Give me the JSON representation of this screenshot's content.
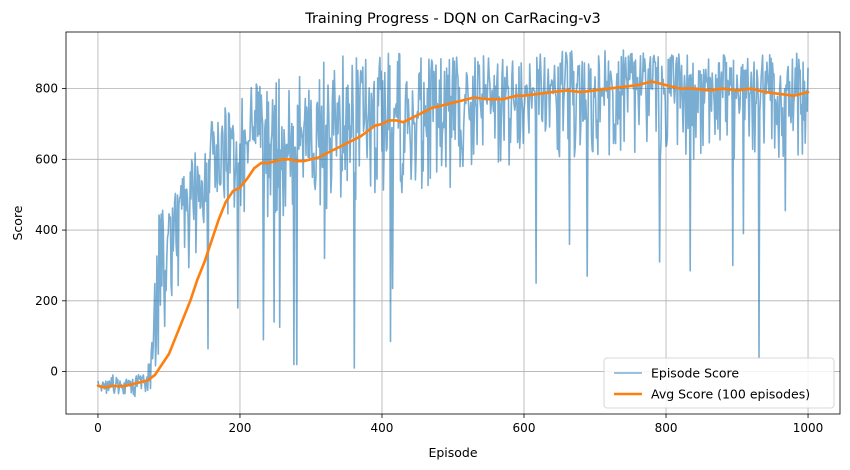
{
  "chart_data": {
    "type": "line",
    "title": "Training Progress - DQN on CarRacing-v3",
    "xlabel": "Episode",
    "ylabel": "Score",
    "xlim": [
      -45,
      1045
    ],
    "ylim": [
      -120,
      960
    ],
    "xticks": [
      0,
      200,
      400,
      600,
      800,
      1000
    ],
    "yticks": [
      0,
      200,
      400,
      600,
      800
    ],
    "grid": true,
    "legend_position": "lower-right",
    "series": [
      {
        "name": "Episode Score",
        "color": "#1f77b4",
        "opacity": 0.6,
        "line_width": 1.6,
        "style": "noisy",
        "x": [
          0,
          10,
          20,
          30,
          40,
          50,
          60,
          70,
          80,
          90,
          100,
          110,
          120,
          130,
          140,
          150,
          160,
          170,
          180,
          190,
          200,
          210,
          220,
          230,
          240,
          250,
          260,
          270,
          280,
          290,
          300,
          320,
          340,
          360,
          380,
          400,
          420,
          440,
          460,
          480,
          500,
          520,
          540,
          560,
          580,
          600,
          620,
          640,
          660,
          680,
          700,
          720,
          740,
          760,
          780,
          800,
          820,
          840,
          860,
          880,
          900,
          920,
          940,
          960,
          980,
          1000
        ],
        "y": [
          -40,
          -45,
          -40,
          -45,
          -40,
          -45,
          -40,
          -40,
          150,
          280,
          340,
          390,
          430,
          480,
          520,
          560,
          590,
          600,
          620,
          630,
          640,
          650,
          660,
          650,
          660,
          650,
          660,
          650,
          640,
          650,
          660,
          680,
          690,
          700,
          710,
          720,
          720,
          720,
          730,
          740,
          740,
          760,
          770,
          770,
          760,
          780,
          790,
          790,
          800,
          800,
          800,
          800,
          800,
          800,
          800,
          800,
          800,
          800,
          800,
          800,
          790,
          790,
          790,
          800,
          790,
          800
        ],
        "amplitude_down": [
          15,
          20,
          20,
          25,
          25,
          30,
          35,
          40,
          150,
          250,
          220,
          200,
          180,
          220,
          220,
          200,
          220,
          200,
          200,
          180,
          220,
          220,
          220,
          220,
          230,
          230,
          230,
          220,
          230,
          220,
          220,
          220,
          230,
          230,
          220,
          230,
          230,
          220,
          220,
          220,
          220,
          200,
          200,
          200,
          200,
          200,
          190,
          190,
          190,
          200,
          200,
          200,
          200,
          190,
          200,
          200,
          200,
          200,
          200,
          200,
          200,
          200,
          200,
          200,
          200,
          190
        ],
        "amplitude_up": [
          15,
          20,
          50,
          25,
          20,
          30,
          35,
          30,
          200,
          230,
          150,
          120,
          120,
          110,
          120,
          130,
          120,
          130,
          130,
          140,
          130,
          150,
          170,
          180,
          200,
          200,
          200,
          200,
          200,
          200,
          200,
          210,
          210,
          200,
          190,
          180,
          180,
          180,
          170,
          160,
          150,
          140,
          130,
          120,
          120,
          120,
          110,
          110,
          110,
          110,
          110,
          110,
          110,
          110,
          100,
          100,
          100,
          100,
          100,
          100,
          110,
          115,
          110,
          100,
          110,
          100
        ],
        "spikes": [
          {
            "x": 155,
            "y": 65
          },
          {
            "x": 197,
            "y": 180
          },
          {
            "x": 233,
            "y": 90
          },
          {
            "x": 248,
            "y": 140
          },
          {
            "x": 256,
            "y": 125
          },
          {
            "x": 276,
            "y": 20
          },
          {
            "x": 280,
            "y": 20
          },
          {
            "x": 319,
            "y": 320
          },
          {
            "x": 361,
            "y": 10
          },
          {
            "x": 412,
            "y": 85
          },
          {
            "x": 415,
            "y": 235
          },
          {
            "x": 617,
            "y": 250
          },
          {
            "x": 664,
            "y": 360
          },
          {
            "x": 689,
            "y": 270
          },
          {
            "x": 791,
            "y": 310
          },
          {
            "x": 834,
            "y": 285
          },
          {
            "x": 894,
            "y": 300
          },
          {
            "x": 909,
            "y": 390
          },
          {
            "x": 931,
            "y": 40
          },
          {
            "x": 968,
            "y": 455
          }
        ]
      },
      {
        "name": "Avg Score (100 episodes)",
        "color": "#ff7f0e",
        "opacity": 1,
        "line_width": 2.6,
        "x": [
          0,
          10,
          20,
          30,
          40,
          50,
          60,
          70,
          80,
          90,
          100,
          110,
          120,
          130,
          140,
          150,
          160,
          170,
          180,
          190,
          200,
          210,
          220,
          230,
          240,
          250,
          260,
          270,
          280,
          290,
          300,
          310,
          320,
          330,
          340,
          350,
          360,
          370,
          380,
          390,
          400,
          410,
          420,
          430,
          440,
          450,
          460,
          470,
          480,
          490,
          500,
          510,
          520,
          530,
          540,
          550,
          560,
          570,
          580,
          590,
          600,
          620,
          640,
          660,
          680,
          700,
          720,
          740,
          760,
          780,
          790,
          800,
          820,
          840,
          860,
          880,
          900,
          920,
          940,
          960,
          980,
          1000
        ],
        "y": [
          -40,
          -45,
          -40,
          -42,
          -40,
          -35,
          -30,
          -25,
          -10,
          20,
          50,
          100,
          150,
          200,
          260,
          310,
          370,
          430,
          480,
          510,
          520,
          545,
          575,
          590,
          590,
          595,
          600,
          600,
          595,
          595,
          600,
          605,
          615,
          625,
          635,
          645,
          655,
          665,
          680,
          695,
          700,
          710,
          710,
          705,
          715,
          725,
          735,
          745,
          750,
          755,
          760,
          765,
          770,
          775,
          772,
          770,
          770,
          770,
          775,
          780,
          780,
          785,
          790,
          795,
          790,
          795,
          800,
          805,
          810,
          820,
          815,
          810,
          800,
          800,
          795,
          800,
          795,
          800,
          790,
          785,
          780,
          790
        ]
      }
    ]
  }
}
